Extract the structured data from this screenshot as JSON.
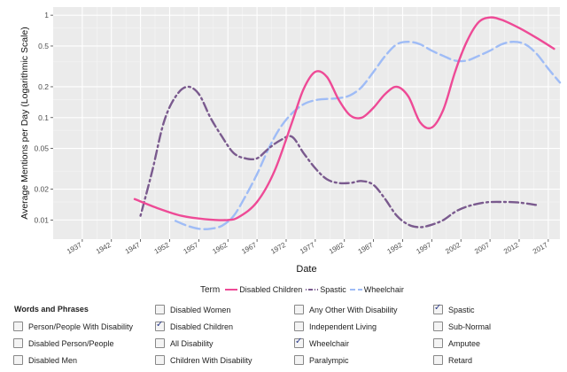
{
  "chart_data": {
    "type": "line",
    "title": "",
    "xlabel": "Date",
    "ylabel": "Average Mentions per Day (Logarithmic Scale)",
    "y_scale": "log",
    "xlim": [
      1932,
      2019
    ],
    "ylim": [
      0.0065,
      1.2
    ],
    "x_ticks": [
      1937,
      1942,
      1947,
      1952,
      1957,
      1962,
      1967,
      1972,
      1977,
      1982,
      1987,
      1992,
      1997,
      2002,
      2007,
      2012,
      2017
    ],
    "y_ticks": [
      0.01,
      0.02,
      0.05,
      0.1,
      0.2,
      0.5,
      1
    ],
    "y_tick_labels": [
      "0.01",
      "0.02",
      "0.05",
      "0.1",
      "0.2",
      "0.5",
      "1"
    ],
    "grid": true,
    "legend_position": "bottom",
    "legend_title": "Term",
    "series": [
      {
        "name": "Disabled Children",
        "color": "#ee4a96",
        "dash": "solid",
        "x": [
          1946,
          1950,
          1954,
          1958,
          1962,
          1964,
          1967,
          1970,
          1973,
          1975,
          1977,
          1979,
          1981,
          1983,
          1985,
          1987,
          1989,
          1991,
          1993,
          1995,
          1997,
          1999,
          2001,
          2003,
          2005,
          2007,
          2009,
          2012,
          2015,
          2018
        ],
        "y": [
          0.016,
          0.013,
          0.011,
          0.0102,
          0.01,
          0.0108,
          0.015,
          0.03,
          0.09,
          0.19,
          0.28,
          0.25,
          0.15,
          0.105,
          0.1,
          0.125,
          0.17,
          0.2,
          0.16,
          0.09,
          0.08,
          0.12,
          0.28,
          0.55,
          0.85,
          0.95,
          0.9,
          0.75,
          0.6,
          0.47
        ]
      },
      {
        "name": "Spastic",
        "color": "#7a5a8e",
        "dash": "dotdash",
        "x": [
          1947,
          1949,
          1951,
          1953,
          1955,
          1957,
          1959,
          1961,
          1963,
          1965,
          1967,
          1969,
          1971,
          1973,
          1975,
          1977,
          1979,
          1981,
          1983,
          1985,
          1987,
          1989,
          1991,
          1993,
          1995,
          1997,
          1999,
          2001,
          2003,
          2006,
          2009,
          2012,
          2015
        ],
        "y": [
          0.011,
          0.03,
          0.09,
          0.16,
          0.2,
          0.17,
          0.1,
          0.065,
          0.045,
          0.04,
          0.04,
          0.05,
          0.06,
          0.065,
          0.045,
          0.032,
          0.025,
          0.023,
          0.023,
          0.024,
          0.022,
          0.016,
          0.011,
          0.009,
          0.0085,
          0.009,
          0.01,
          0.012,
          0.0135,
          0.0148,
          0.015,
          0.0148,
          0.014
        ]
      },
      {
        "name": "Wheelchair",
        "color": "#9fbcf6",
        "dash": "longdash",
        "x": [
          1953,
          1955,
          1957,
          1959,
          1961,
          1963,
          1965,
          1967,
          1969,
          1971,
          1973,
          1975,
          1977,
          1979,
          1981,
          1983,
          1985,
          1987,
          1989,
          1991,
          1993,
          1995,
          1997,
          1999,
          2001,
          2003,
          2005,
          2007,
          2009,
          2011,
          2013,
          2015,
          2017,
          2019
        ],
        "y": [
          0.0098,
          0.0088,
          0.0082,
          0.0082,
          0.0088,
          0.011,
          0.017,
          0.028,
          0.05,
          0.08,
          0.11,
          0.135,
          0.148,
          0.152,
          0.155,
          0.165,
          0.2,
          0.28,
          0.4,
          0.52,
          0.55,
          0.52,
          0.45,
          0.4,
          0.36,
          0.36,
          0.4,
          0.45,
          0.52,
          0.55,
          0.52,
          0.42,
          0.3,
          0.22
        ]
      }
    ]
  },
  "controls": {
    "heading": "Words and Phrases",
    "columns": [
      [
        {
          "label": "Person/People With Disability",
          "checked": false
        },
        {
          "label": "Disabled Person/People",
          "checked": false
        },
        {
          "label": "Disabled Men",
          "checked": false
        }
      ],
      [
        {
          "label": "Disabled Women",
          "checked": false
        },
        {
          "label": "Disabled Children",
          "checked": true
        },
        {
          "label": "All Disability",
          "checked": false
        },
        {
          "label": "Children With Disability",
          "checked": false
        }
      ],
      [
        {
          "label": "Any Other With Disability",
          "checked": false
        },
        {
          "label": "Independent Living",
          "checked": false
        },
        {
          "label": "Wheelchair",
          "checked": true
        },
        {
          "label": "Paralympic",
          "checked": false
        }
      ],
      [
        {
          "label": "Spastic",
          "checked": true
        },
        {
          "label": "Sub-Normal",
          "checked": false
        },
        {
          "label": "Amputee",
          "checked": false
        },
        {
          "label": "Retard",
          "checked": false
        }
      ]
    ]
  }
}
